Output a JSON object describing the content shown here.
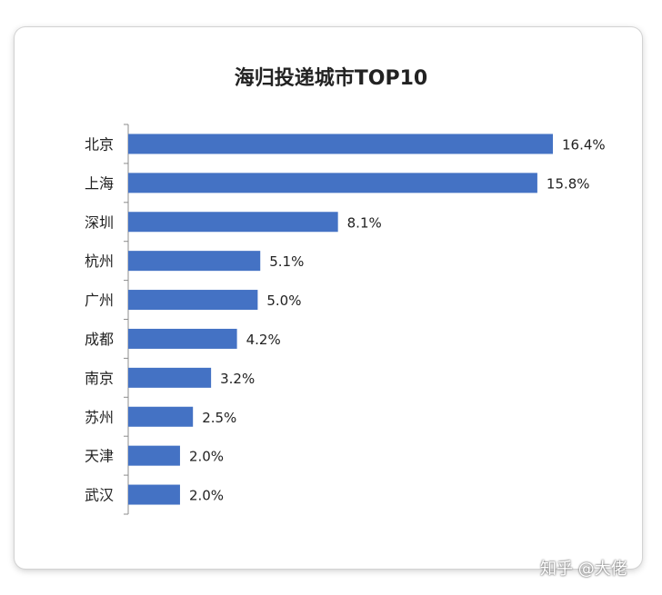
{
  "chart_data": {
    "type": "bar",
    "orientation": "horizontal",
    "title": "海归投递城市TOP10",
    "categories": [
      "北京",
      "上海",
      "深圳",
      "杭州",
      "广州",
      "成都",
      "南京",
      "苏州",
      "天津",
      "武汉"
    ],
    "values": [
      16.4,
      15.8,
      8.1,
      5.1,
      5.0,
      4.2,
      3.2,
      2.5,
      2.0,
      2.0
    ],
    "data_labels": [
      "16.4%",
      "15.8%",
      "8.1%",
      "5.1%",
      "5.0%",
      "4.2%",
      "3.2%",
      "2.5%",
      "2.0%",
      "2.0%"
    ],
    "xlim": [
      0,
      16.4
    ],
    "grid": false,
    "legend": "none",
    "bar_color": "#4472C4"
  },
  "watermark": "知乎 @大佬"
}
